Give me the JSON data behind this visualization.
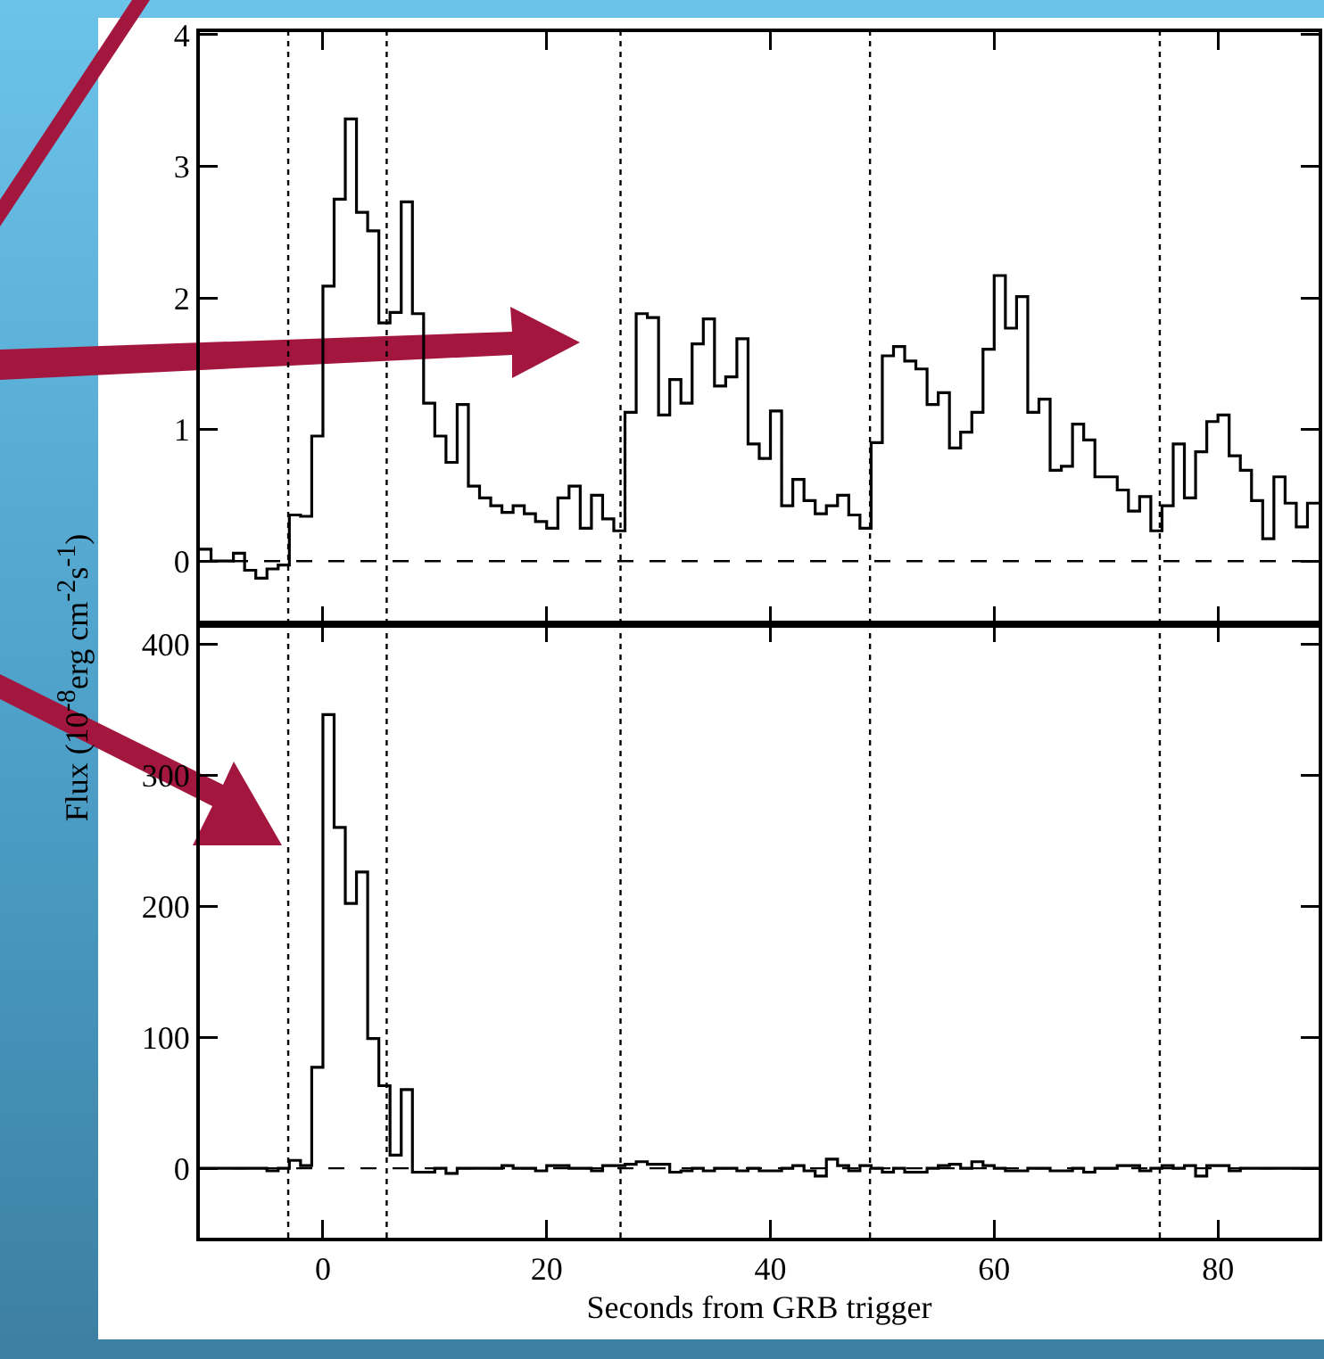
{
  "chart_data": [
    {
      "type": "histogram",
      "ylabel": "Flux (10$^{-8}$erg cm$^{-2}$s$^{-1}$)",
      "color": "#000000",
      "bins": [
        -11,
        -10,
        -9,
        -8,
        -7,
        -6,
        -5,
        -4,
        -3,
        -2,
        -1,
        0,
        1,
        2,
        3,
        4,
        5,
        6,
        7,
        8,
        9,
        10,
        11,
        12,
        13,
        14,
        15,
        16,
        17,
        18,
        19,
        20,
        21,
        22,
        23,
        24,
        25,
        26,
        27,
        28,
        29,
        30,
        31,
        32,
        33,
        34,
        35,
        36,
        37,
        38,
        39,
        40,
        41,
        42,
        43,
        44,
        45,
        46,
        47,
        48,
        49,
        50,
        51,
        52,
        53,
        54,
        55,
        56,
        57,
        58,
        59,
        60,
        61,
        62,
        63,
        64,
        65,
        66,
        67,
        68,
        69,
        70,
        71,
        72,
        73,
        74,
        75,
        76,
        77,
        78,
        79,
        80,
        81,
        82,
        83,
        84,
        85,
        86,
        87,
        88,
        89
      ],
      "values": [
        0.09,
        0.0,
        0.0,
        0.06,
        -0.07,
        -0.13,
        -0.06,
        -0.03,
        0.35,
        0.34,
        0.95,
        2.09,
        2.75,
        3.36,
        2.65,
        2.51,
        1.81,
        1.89,
        2.73,
        1.88,
        1.2,
        0.95,
        0.75,
        1.19,
        0.57,
        0.48,
        0.42,
        0.37,
        0.42,
        0.36,
        0.3,
        0.25,
        0.48,
        0.57,
        0.25,
        0.5,
        0.32,
        0.23,
        1.13,
        1.88,
        1.85,
        1.11,
        1.38,
        1.2,
        1.65,
        1.84,
        1.33,
        1.4,
        1.69,
        0.89,
        0.78,
        1.14,
        0.42,
        0.62,
        0.46,
        0.36,
        0.42,
        0.5,
        0.35,
        0.25,
        0.9,
        1.56,
        1.63,
        1.52,
        1.46,
        1.19,
        1.28,
        0.86,
        0.98,
        1.13,
        1.61,
        2.17,
        1.77,
        2.01,
        1.13,
        1.23,
        0.69,
        0.72,
        1.04,
        0.92,
        0.64,
        0.64,
        0.54,
        0.38,
        0.49,
        0.23,
        0.42,
        0.89,
        0.48,
        0.83,
        1.06,
        1.11,
        0.8,
        0.69,
        0.46,
        0.17,
        0.64,
        0.44,
        0.26,
        0.44
      ],
      "xlim": [
        -11,
        89
      ],
      "xticks": [
        0,
        20,
        40,
        60,
        80
      ],
      "ylim": [
        -0.48,
        4.02
      ],
      "yticks": [
        0,
        1,
        2,
        3,
        4
      ],
      "tick_labels": "y",
      "ref_lines": [
        {
          "axis": "x",
          "value": -3.1,
          "line_style": "dotted"
        },
        {
          "axis": "x",
          "value": 5.7,
          "line_style": "dotted"
        },
        {
          "axis": "x",
          "value": 26.6,
          "line_style": "dotted"
        },
        {
          "axis": "x",
          "value": 48.9,
          "line_style": "dotted"
        },
        {
          "axis": "x",
          "value": 74.8,
          "line_style": "dotted"
        },
        {
          "axis": "y",
          "value": 0,
          "line_style": "dashed"
        }
      ]
    },
    {
      "type": "histogram",
      "xlabel": "Seconds from GRB trigger",
      "color": "#000000",
      "bins": [
        -11,
        -10,
        -9,
        -8,
        -7,
        -6,
        -5,
        -4,
        -3,
        -2,
        -1,
        0,
        1,
        2,
        3,
        4,
        5,
        6,
        7,
        8,
        9,
        10,
        11,
        12,
        13,
        14,
        15,
        16,
        17,
        18,
        19,
        20,
        21,
        22,
        23,
        24,
        25,
        26,
        27,
        28,
        29,
        30,
        31,
        32,
        33,
        34,
        35,
        36,
        37,
        38,
        39,
        40,
        41,
        42,
        43,
        44,
        45,
        46,
        47,
        48,
        49,
        50,
        51,
        52,
        53,
        54,
        55,
        56,
        57,
        58,
        59,
        60,
        61,
        62,
        63,
        64,
        65,
        66,
        67,
        68,
        69,
        70,
        71,
        72,
        73,
        74,
        75,
        76,
        77,
        78,
        79,
        80,
        81,
        82,
        83,
        84,
        85,
        86,
        87,
        88,
        89
      ],
      "values": [
        0,
        0,
        0,
        0,
        0,
        0,
        -2,
        0,
        6,
        2,
        77,
        346,
        260,
        202,
        226,
        99,
        63,
        10,
        60,
        -3,
        -3,
        0,
        -4,
        0,
        0,
        0,
        0,
        2,
        0,
        0,
        -2,
        2,
        2,
        0,
        0,
        -2,
        2,
        2,
        3,
        5,
        3,
        3,
        -3,
        -2,
        0,
        -2,
        0,
        0,
        -2,
        0,
        -2,
        -2,
        0,
        2,
        -2,
        -6,
        7,
        2,
        -2,
        2,
        0,
        -3,
        0,
        -3,
        -3,
        0,
        2,
        3,
        0,
        5,
        2,
        0,
        -2,
        -2,
        0,
        0,
        -2,
        -2,
        0,
        -3,
        0,
        0,
        2,
        2,
        -2,
        0,
        2,
        0,
        2,
        -6,
        2,
        2,
        -2,
        0,
        0,
        0,
        0,
        0,
        0,
        0
      ],
      "xlim": [
        -11,
        89
      ],
      "xticks": [
        0,
        20,
        40,
        60,
        80
      ],
      "ylim": [
        -53,
        415
      ],
      "yticks": [
        0,
        100,
        200,
        300,
        400
      ],
      "ref_lines": [
        {
          "axis": "x",
          "value": -3.1,
          "line_style": "dotted"
        },
        {
          "axis": "x",
          "value": 5.7,
          "line_style": "dotted"
        },
        {
          "axis": "x",
          "value": 26.6,
          "line_style": "dotted"
        },
        {
          "axis": "x",
          "value": 48.9,
          "line_style": "dotted"
        },
        {
          "axis": "x",
          "value": 74.8,
          "line_style": "dotted"
        },
        {
          "axis": "y",
          "value": 0,
          "line_style": "dashed"
        }
      ]
    }
  ]
}
